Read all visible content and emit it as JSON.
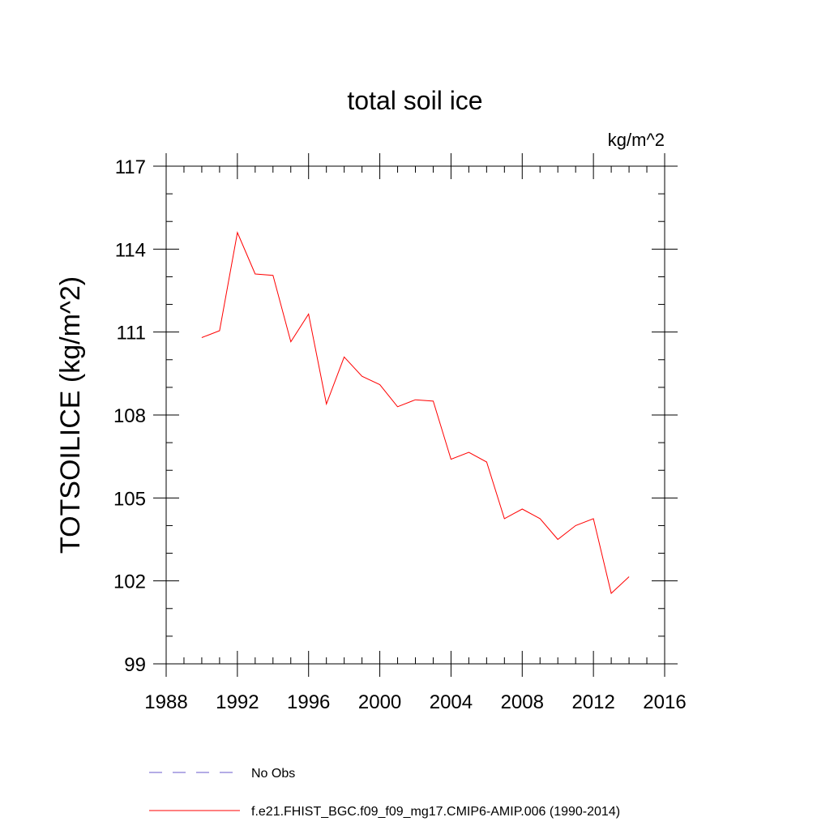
{
  "chart_data": {
    "type": "line",
    "title": "total soil ice",
    "units_label": "kg/m^2",
    "ylabel": "TOTSOILICE  (kg/m^2)",
    "xlabel": "",
    "xlim": [
      1988,
      2016
    ],
    "ylim": [
      99,
      117
    ],
    "x_ticks": [
      1988,
      1992,
      1996,
      2000,
      2004,
      2008,
      2012,
      2016
    ],
    "y_ticks": [
      99,
      102,
      105,
      108,
      111,
      114,
      117
    ],
    "x_minor_step": 1,
    "y_minor_step": 1,
    "grid": false,
    "legend_placement": "bottom",
    "series": [
      {
        "name": "f.e21.FHIST_BGC.f09_f09_mg17.CMIP6-AMIP.006 (1990-2014)",
        "color": "#ff0000",
        "dash": "solid",
        "x": [
          1990,
          1991,
          1992,
          1993,
          1994,
          1995,
          1996,
          1997,
          1998,
          1999,
          2000,
          2001,
          2002,
          2003,
          2004,
          2005,
          2006,
          2007,
          2008,
          2009,
          2010,
          2011,
          2012,
          2013,
          2014
        ],
        "y": [
          110.8,
          111.05,
          114.6,
          113.1,
          113.05,
          110.65,
          111.65,
          108.4,
          110.1,
          109.4,
          109.1,
          108.3,
          108.55,
          108.5,
          106.4,
          106.65,
          106.3,
          104.25,
          104.6,
          104.25,
          103.5,
          104.0,
          104.25,
          101.55,
          102.15
        ]
      }
    ],
    "legend": [
      {
        "label": "No Obs",
        "color": "#6a5acd",
        "dash": "dashed"
      },
      {
        "label": "f.e21.FHIST_BGC.f09_f09_mg17.CMIP6-AMIP.006 (1990-2014)",
        "color": "#ff0000",
        "dash": "solid"
      }
    ]
  }
}
